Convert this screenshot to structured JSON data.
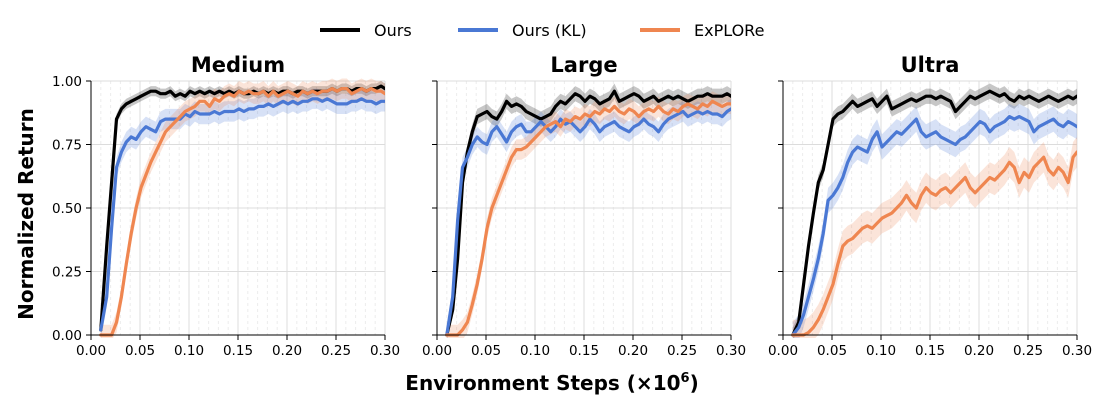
{
  "legend": {
    "placement": "top-center",
    "items": [
      {
        "label": "Ours",
        "color": "#000000"
      },
      {
        "label": "Ours (KL)",
        "color": "#4a78d4"
      },
      {
        "label": "ExPLORe",
        "color": "#ef8650"
      }
    ]
  },
  "axes": {
    "xlabel": "Environment Steps (×10",
    "xlabel_exp": "6",
    "xlabel_close": ")",
    "ylabel": "Normalized Return"
  },
  "chart_data": [
    {
      "type": "line",
      "title": "Medium",
      "xlim": [
        0,
        0.3
      ],
      "ylim": [
        0,
        1.0
      ],
      "xticks": [
        "0.00",
        "0.05",
        "0.10",
        "0.15",
        "0.20",
        "0.25",
        "0.30"
      ],
      "yticks": [
        "0.00",
        "0.25",
        "0.50",
        "0.75",
        "1.00"
      ],
      "grid": true,
      "x": [
        0.01,
        0.016,
        0.021,
        0.026,
        0.031,
        0.036,
        0.041,
        0.046,
        0.051,
        0.056,
        0.061,
        0.066,
        0.071,
        0.076,
        0.081,
        0.086,
        0.091,
        0.096,
        0.101,
        0.106,
        0.111,
        0.116,
        0.121,
        0.126,
        0.131,
        0.136,
        0.141,
        0.146,
        0.151,
        0.156,
        0.161,
        0.166,
        0.171,
        0.176,
        0.181,
        0.186,
        0.191,
        0.196,
        0.201,
        0.206,
        0.211,
        0.216,
        0.221,
        0.226,
        0.231,
        0.236,
        0.241,
        0.246,
        0.251,
        0.256,
        0.261,
        0.266,
        0.271,
        0.276,
        0.281,
        0.286,
        0.291,
        0.296,
        0.3
      ],
      "series": [
        {
          "name": "Ours",
          "color": "#000000",
          "band": 0.02,
          "values": [
            0.02,
            0.35,
            0.6,
            0.85,
            0.89,
            0.91,
            0.92,
            0.93,
            0.94,
            0.95,
            0.96,
            0.96,
            0.95,
            0.95,
            0.96,
            0.94,
            0.95,
            0.94,
            0.96,
            0.95,
            0.96,
            0.95,
            0.96,
            0.95,
            0.96,
            0.95,
            0.96,
            0.95,
            0.96,
            0.95,
            0.95,
            0.96,
            0.95,
            0.96,
            0.95,
            0.96,
            0.95,
            0.96,
            0.96,
            0.95,
            0.96,
            0.96,
            0.95,
            0.96,
            0.96,
            0.96,
            0.96,
            0.97,
            0.96,
            0.97,
            0.97,
            0.96,
            0.97,
            0.97,
            0.96,
            0.97,
            0.97,
            0.98,
            0.97
          ]
        },
        {
          "name": "Ours (KL)",
          "color": "#4a78d4",
          "band": 0.04,
          "values": [
            0.02,
            0.15,
            0.42,
            0.66,
            0.72,
            0.76,
            0.78,
            0.77,
            0.8,
            0.82,
            0.81,
            0.8,
            0.84,
            0.85,
            0.85,
            0.85,
            0.85,
            0.87,
            0.86,
            0.88,
            0.87,
            0.87,
            0.87,
            0.88,
            0.87,
            0.88,
            0.88,
            0.88,
            0.89,
            0.88,
            0.89,
            0.89,
            0.9,
            0.9,
            0.91,
            0.9,
            0.91,
            0.92,
            0.91,
            0.92,
            0.91,
            0.92,
            0.92,
            0.93,
            0.93,
            0.92,
            0.93,
            0.92,
            0.91,
            0.91,
            0.91,
            0.92,
            0.92,
            0.93,
            0.92,
            0.92,
            0.91,
            0.92,
            0.92
          ]
        },
        {
          "name": "ExPLORe",
          "color": "#ef8650",
          "band": 0.04,
          "values": [
            0.0,
            0.0,
            0.0,
            0.05,
            0.15,
            0.28,
            0.4,
            0.5,
            0.58,
            0.63,
            0.68,
            0.72,
            0.76,
            0.8,
            0.82,
            0.84,
            0.86,
            0.88,
            0.89,
            0.9,
            0.92,
            0.92,
            0.9,
            0.93,
            0.92,
            0.94,
            0.95,
            0.94,
            0.96,
            0.95,
            0.96,
            0.95,
            0.95,
            0.96,
            0.94,
            0.96,
            0.94,
            0.95,
            0.96,
            0.95,
            0.94,
            0.96,
            0.95,
            0.96,
            0.95,
            0.96,
            0.96,
            0.97,
            0.96,
            0.97,
            0.97,
            0.95,
            0.96,
            0.97,
            0.96,
            0.97,
            0.96,
            0.96,
            0.95
          ]
        }
      ]
    },
    {
      "type": "line",
      "title": "Large",
      "xlim": [
        0,
        0.3
      ],
      "ylim": [
        0,
        1.0
      ],
      "xticks": [
        "0.00",
        "0.05",
        "0.10",
        "0.15",
        "0.20",
        "0.25",
        "0.30"
      ],
      "yticks": [
        "0.00",
        "0.25",
        "0.50",
        "0.75",
        "1.00"
      ],
      "grid": true,
      "x": [
        0.01,
        0.016,
        0.021,
        0.026,
        0.031,
        0.036,
        0.041,
        0.046,
        0.051,
        0.056,
        0.061,
        0.066,
        0.071,
        0.076,
        0.081,
        0.086,
        0.091,
        0.096,
        0.101,
        0.106,
        0.111,
        0.116,
        0.121,
        0.126,
        0.131,
        0.136,
        0.141,
        0.146,
        0.151,
        0.156,
        0.161,
        0.166,
        0.171,
        0.176,
        0.181,
        0.186,
        0.191,
        0.196,
        0.201,
        0.206,
        0.211,
        0.216,
        0.221,
        0.226,
        0.231,
        0.236,
        0.241,
        0.246,
        0.251,
        0.256,
        0.261,
        0.266,
        0.271,
        0.276,
        0.281,
        0.286,
        0.291,
        0.296,
        0.3
      ],
      "series": [
        {
          "name": "Ours",
          "color": "#000000",
          "band": 0.03,
          "values": [
            0.0,
            0.1,
            0.3,
            0.6,
            0.72,
            0.8,
            0.86,
            0.87,
            0.88,
            0.86,
            0.85,
            0.88,
            0.92,
            0.9,
            0.91,
            0.9,
            0.88,
            0.87,
            0.86,
            0.85,
            0.86,
            0.87,
            0.9,
            0.92,
            0.91,
            0.93,
            0.95,
            0.94,
            0.92,
            0.94,
            0.93,
            0.91,
            0.92,
            0.93,
            0.96,
            0.92,
            0.93,
            0.94,
            0.95,
            0.94,
            0.92,
            0.93,
            0.94,
            0.92,
            0.93,
            0.94,
            0.93,
            0.94,
            0.93,
            0.92,
            0.93,
            0.94,
            0.94,
            0.95,
            0.94,
            0.94,
            0.94,
            0.95,
            0.94
          ]
        },
        {
          "name": "Ours (KL)",
          "color": "#4a78d4",
          "band": 0.04,
          "values": [
            0.0,
            0.15,
            0.45,
            0.66,
            0.7,
            0.75,
            0.78,
            0.76,
            0.75,
            0.8,
            0.82,
            0.79,
            0.76,
            0.8,
            0.82,
            0.83,
            0.8,
            0.8,
            0.82,
            0.84,
            0.82,
            0.8,
            0.82,
            0.85,
            0.83,
            0.84,
            0.82,
            0.8,
            0.82,
            0.85,
            0.83,
            0.8,
            0.82,
            0.83,
            0.84,
            0.82,
            0.81,
            0.8,
            0.82,
            0.83,
            0.85,
            0.83,
            0.82,
            0.8,
            0.83,
            0.85,
            0.86,
            0.87,
            0.88,
            0.86,
            0.87,
            0.88,
            0.87,
            0.88,
            0.87,
            0.87,
            0.86,
            0.88,
            0.89
          ]
        },
        {
          "name": "ExPLORe",
          "color": "#ef8650",
          "band": 0.04,
          "values": [
            0.0,
            0.0,
            0.0,
            0.02,
            0.05,
            0.12,
            0.2,
            0.3,
            0.42,
            0.5,
            0.55,
            0.6,
            0.65,
            0.7,
            0.73,
            0.73,
            0.74,
            0.76,
            0.78,
            0.8,
            0.82,
            0.83,
            0.84,
            0.82,
            0.85,
            0.84,
            0.86,
            0.85,
            0.87,
            0.86,
            0.88,
            0.87,
            0.89,
            0.88,
            0.9,
            0.88,
            0.87,
            0.89,
            0.88,
            0.86,
            0.88,
            0.89,
            0.88,
            0.9,
            0.88,
            0.87,
            0.89,
            0.88,
            0.9,
            0.91,
            0.9,
            0.89,
            0.91,
            0.9,
            0.92,
            0.91,
            0.9,
            0.91,
            0.91
          ]
        }
      ]
    },
    {
      "type": "line",
      "title": "Ultra",
      "xlim": [
        0,
        0.3
      ],
      "ylim": [
        0,
        1.0
      ],
      "xticks": [
        "0.00",
        "0.05",
        "0.10",
        "0.15",
        "0.20",
        "0.25",
        "0.30"
      ],
      "yticks": [
        "0.00",
        "0.25",
        "0.50",
        "0.75",
        "1.00"
      ],
      "grid": true,
      "x": [
        0.01,
        0.016,
        0.021,
        0.026,
        0.031,
        0.036,
        0.041,
        0.046,
        0.051,
        0.056,
        0.061,
        0.066,
        0.071,
        0.076,
        0.081,
        0.086,
        0.091,
        0.096,
        0.101,
        0.106,
        0.111,
        0.116,
        0.121,
        0.126,
        0.131,
        0.136,
        0.141,
        0.146,
        0.151,
        0.156,
        0.161,
        0.166,
        0.171,
        0.176,
        0.181,
        0.186,
        0.191,
        0.196,
        0.201,
        0.206,
        0.211,
        0.216,
        0.221,
        0.226,
        0.231,
        0.236,
        0.241,
        0.246,
        0.251,
        0.256,
        0.261,
        0.266,
        0.271,
        0.276,
        0.281,
        0.286,
        0.291,
        0.296,
        0.3
      ],
      "series": [
        {
          "name": "Ours",
          "color": "#000000",
          "band": 0.03,
          "values": [
            0.0,
            0.05,
            0.2,
            0.35,
            0.48,
            0.6,
            0.65,
            0.75,
            0.85,
            0.87,
            0.88,
            0.9,
            0.92,
            0.9,
            0.91,
            0.92,
            0.93,
            0.9,
            0.92,
            0.94,
            0.89,
            0.9,
            0.91,
            0.92,
            0.93,
            0.92,
            0.93,
            0.94,
            0.94,
            0.93,
            0.94,
            0.93,
            0.92,
            0.88,
            0.9,
            0.92,
            0.94,
            0.93,
            0.94,
            0.95,
            0.96,
            0.95,
            0.94,
            0.95,
            0.93,
            0.92,
            0.94,
            0.93,
            0.94,
            0.93,
            0.92,
            0.93,
            0.94,
            0.93,
            0.92,
            0.93,
            0.94,
            0.93,
            0.94
          ]
        },
        {
          "name": "Ours (KL)",
          "color": "#4a78d4",
          "band": 0.05,
          "values": [
            0.0,
            0.03,
            0.08,
            0.15,
            0.22,
            0.3,
            0.4,
            0.53,
            0.55,
            0.58,
            0.62,
            0.68,
            0.72,
            0.74,
            0.73,
            0.72,
            0.77,
            0.8,
            0.74,
            0.76,
            0.78,
            0.8,
            0.79,
            0.81,
            0.83,
            0.85,
            0.8,
            0.78,
            0.79,
            0.8,
            0.78,
            0.77,
            0.76,
            0.75,
            0.77,
            0.78,
            0.8,
            0.82,
            0.84,
            0.83,
            0.8,
            0.82,
            0.83,
            0.84,
            0.86,
            0.85,
            0.86,
            0.85,
            0.84,
            0.8,
            0.82,
            0.83,
            0.84,
            0.85,
            0.83,
            0.82,
            0.84,
            0.83,
            0.82
          ]
        },
        {
          "name": "ExPLORe",
          "color": "#ef8650",
          "band": 0.06,
          "values": [
            0.0,
            0.0,
            0.0,
            0.01,
            0.03,
            0.06,
            0.1,
            0.15,
            0.2,
            0.28,
            0.35,
            0.37,
            0.38,
            0.4,
            0.42,
            0.43,
            0.42,
            0.44,
            0.46,
            0.47,
            0.48,
            0.5,
            0.52,
            0.55,
            0.52,
            0.5,
            0.55,
            0.58,
            0.56,
            0.55,
            0.57,
            0.58,
            0.56,
            0.58,
            0.6,
            0.62,
            0.58,
            0.56,
            0.58,
            0.6,
            0.62,
            0.61,
            0.63,
            0.65,
            0.68,
            0.66,
            0.6,
            0.64,
            0.62,
            0.66,
            0.68,
            0.7,
            0.65,
            0.63,
            0.66,
            0.64,
            0.6,
            0.7,
            0.72
          ]
        }
      ]
    }
  ]
}
